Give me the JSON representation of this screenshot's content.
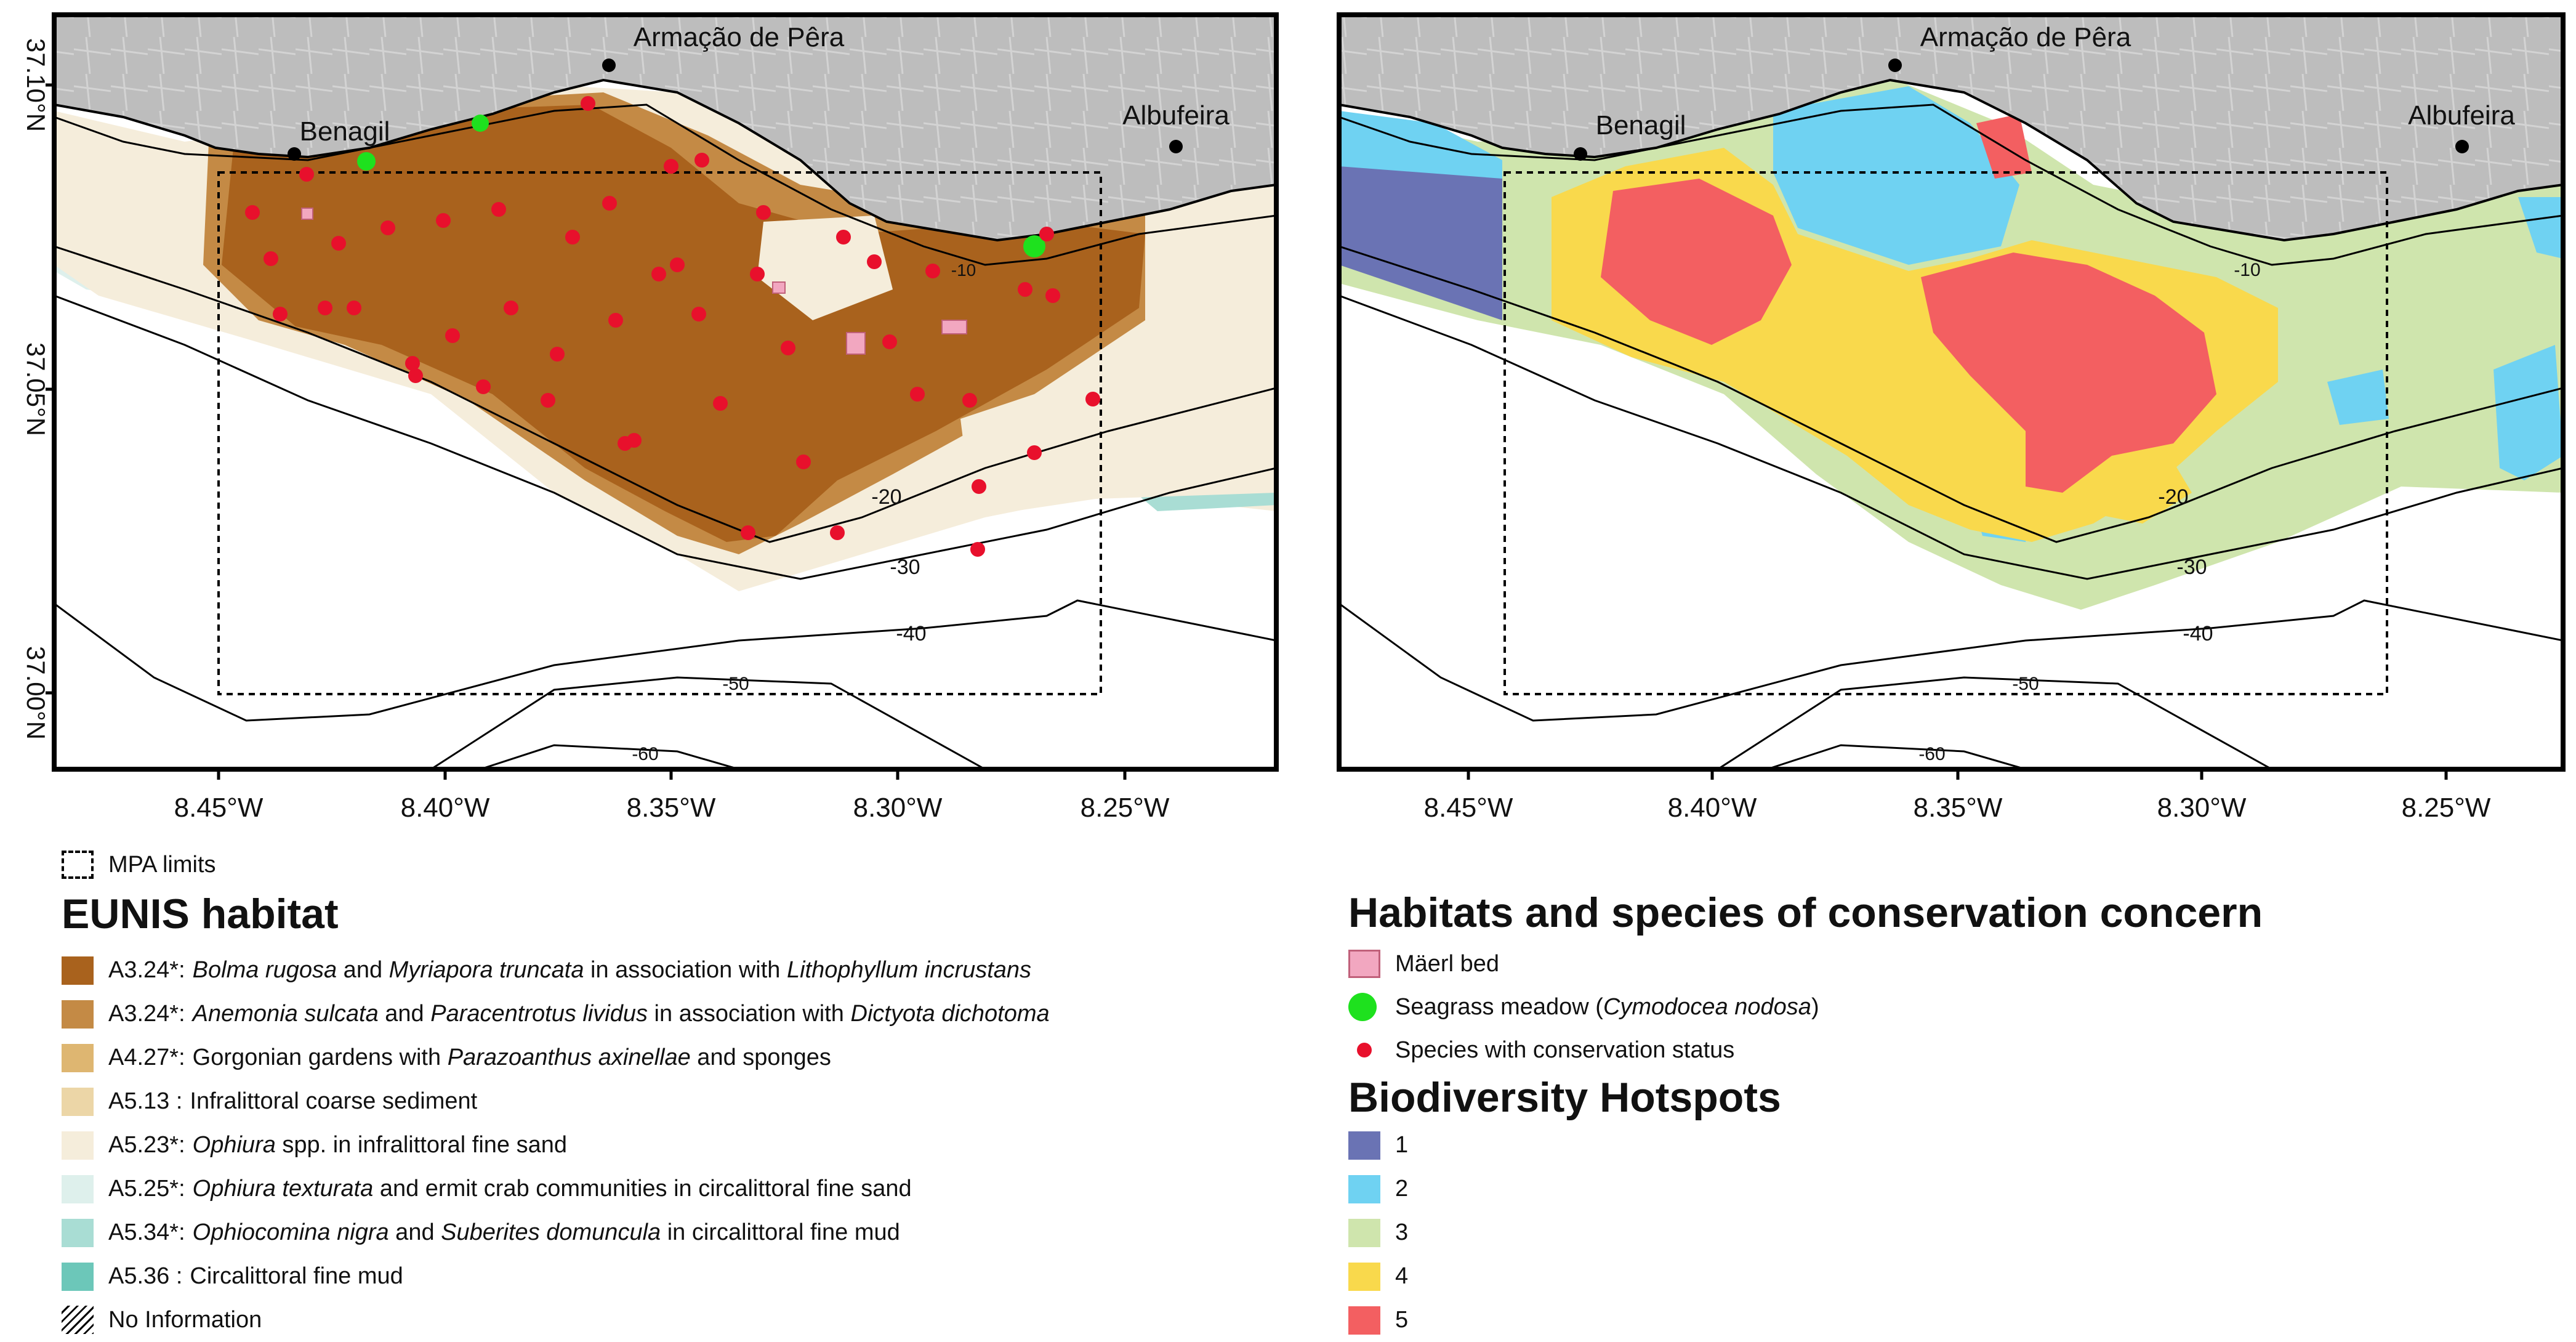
{
  "colors": {
    "land": "#bfbfbf",
    "sea": "#ffffff",
    "bolma": "#a9621d",
    "anemonia": "#c48a45",
    "gorgonian": "#deb671",
    "coarse": "#ecd6a7",
    "ophiura_sand": "#f5eddb",
    "ophiura_text": "#def0ec",
    "ophiocomina": "#a9ddd4",
    "fine_mud": "#6cc7b9",
    "maerl": "#f2a7c0",
    "seagrass": "#1ee11e",
    "species": "#e8102c",
    "hot1": "#6a73b4",
    "hot2": "#6fd2f2",
    "hot3": "#cfe5ad",
    "hot4": "#f9d94c",
    "hot5": "#f35f61"
  },
  "map": {
    "y_ticks": [
      "37.10°N",
      "37.05°N",
      "37.00°N"
    ],
    "x_ticks": [
      "8.45°W",
      "8.40°W",
      "8.35°W",
      "8.30°W",
      "8.25°W"
    ],
    "places": [
      "Armação de Pêra",
      "Benagil",
      "Albufeira"
    ],
    "contours": [
      "-10",
      "-20",
      "-30",
      "-40",
      "-50",
      "-60"
    ]
  },
  "legend_left": {
    "mpa": "MPA limits",
    "title": "EUNIS habitat",
    "items": [
      {
        "code": "A3.24*:",
        "parts": [
          {
            "t": "Bolma rugosa",
            "i": true
          },
          {
            "t": " and "
          },
          {
            "t": "Myriapora truncata",
            "i": true
          },
          {
            "t": " in association with "
          },
          {
            "t": "Lithophyllum incrustans",
            "i": true
          }
        ]
      },
      {
        "code": "A3.24*:",
        "parts": [
          {
            "t": "Anemonia sulcata",
            "i": true
          },
          {
            "t": " and "
          },
          {
            "t": "Paracentrotus lividus",
            "i": true
          },
          {
            "t": " in association with "
          },
          {
            "t": "Dictyota dichotoma",
            "i": true
          }
        ]
      },
      {
        "code": "A4.27*:",
        "parts": [
          {
            "t": "Gorgonian gardens with "
          },
          {
            "t": "Parazoanthus axinellae",
            "i": true
          },
          {
            "t": " and sponges"
          }
        ]
      },
      {
        "code": "A5.13 :",
        "parts": [
          {
            "t": "Infralittoral coarse sediment"
          }
        ]
      },
      {
        "code": "A5.23*:",
        "parts": [
          {
            "t": "Ophiura",
            "i": true
          },
          {
            "t": " spp. in infralittoral fine sand"
          }
        ]
      },
      {
        "code": "A5.25*:",
        "parts": [
          {
            "t": "Ophiura texturata",
            "i": true
          },
          {
            "t": " and ermit crab communities in circalittoral fine sand"
          }
        ]
      },
      {
        "code": "A5.34*:",
        "parts": [
          {
            "t": "Ophiocomina nigra",
            "i": true
          },
          {
            "t": " and "
          },
          {
            "t": "Suberites domuncula",
            "i": true
          },
          {
            "t": " in circalittoral fine mud"
          }
        ]
      },
      {
        "code": "A5.36 :",
        "parts": [
          {
            "t": "Circalittoral fine mud"
          }
        ]
      }
    ],
    "no_info": "No Information"
  },
  "legend_right": {
    "title": "Habitats and species of conservation concern",
    "maerl": "Mäerl bed",
    "seagrass_pre": "Seagrass meadow (",
    "seagrass_it": "Cymodocea nodosa",
    "seagrass_post": ")",
    "species": "Species with conservation status",
    "hot_title": "Biodiversity Hotspots",
    "hot_levels": [
      "1",
      "2",
      "3",
      "4",
      "5"
    ]
  }
}
